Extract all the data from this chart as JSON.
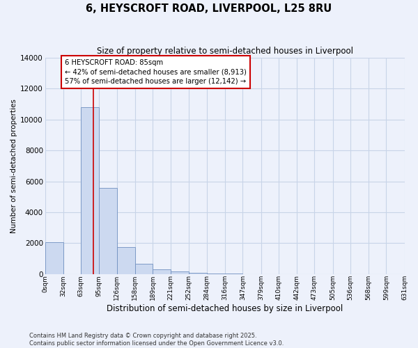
{
  "title": "6, HEYSCROFT ROAD, LIVERPOOL, L25 8RU",
  "subtitle": "Size of property relative to semi-detached houses in Liverpool",
  "xlabel": "Distribution of semi-detached houses by size in Liverpool",
  "ylabel": "Number of semi-detached properties",
  "bar_color": "#ccd9f0",
  "bar_edge_color": "#7090c0",
  "background_color": "#edf1fb",
  "grid_color": "#c8d4e8",
  "bin_edges": [
    0,
    32,
    63,
    95,
    126,
    158,
    189,
    221,
    252,
    284,
    316,
    347,
    379,
    410,
    442,
    473,
    505,
    536,
    568,
    599,
    631
  ],
  "bar_heights": [
    2080,
    0,
    10820,
    5580,
    1740,
    660,
    295,
    150,
    75,
    28,
    10,
    4,
    2,
    1,
    0,
    0,
    0,
    0,
    0,
    0
  ],
  "property_size": 85,
  "red_line_color": "#cc0000",
  "annotation_line1": "6 HEYSCROFT ROAD: 85sqm",
  "annotation_line2": "← 42% of semi-detached houses are smaller (8,913)",
  "annotation_line3": "57% of semi-detached houses are larger (12,142) →",
  "annotation_box_color": "#ffffff",
  "annotation_border_color": "#cc0000",
  "ylim": [
    0,
    14000
  ],
  "yticks": [
    0,
    2000,
    4000,
    6000,
    8000,
    10000,
    12000,
    14000
  ],
  "tick_labels": [
    "0sqm",
    "32sqm",
    "63sqm",
    "95sqm",
    "126sqm",
    "158sqm",
    "189sqm",
    "221sqm",
    "252sqm",
    "284sqm",
    "316sqm",
    "347sqm",
    "379sqm",
    "410sqm",
    "442sqm",
    "473sqm",
    "505sqm",
    "536sqm",
    "568sqm",
    "599sqm",
    "631sqm"
  ],
  "footnote_line1": "Contains HM Land Registry data © Crown copyright and database right 2025.",
  "footnote_line2": "Contains public sector information licensed under the Open Government Licence v3.0."
}
